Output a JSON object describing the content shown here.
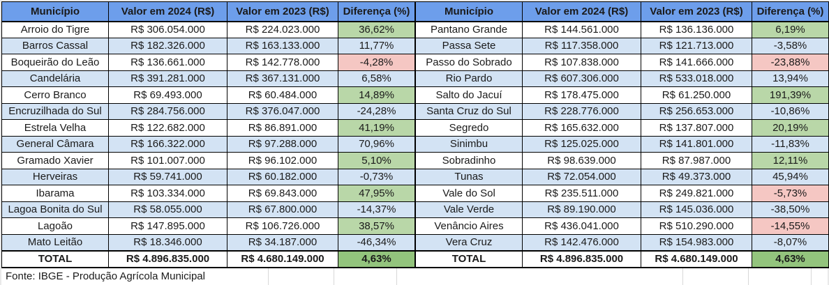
{
  "columns": [
    "Município",
    "Valor em 2024 (R$)",
    "Valor em 2023 (R$)",
    "Diferença (%)"
  ],
  "tables": [
    {
      "rows": [
        [
          "Arroio do Tigre",
          "R$ 306.054.000",
          "R$ 224.023.000",
          "36,62%"
        ],
        [
          "Barros Cassal",
          "R$ 182.326.000",
          "R$ 163.133.000",
          "11,77%"
        ],
        [
          "Boqueirão do Leão",
          "R$ 136.661.000",
          "R$ 142.778.000",
          "-4,28%"
        ],
        [
          "Candelária",
          "R$ 391.281.000",
          "R$ 367.131.000",
          "6,58%"
        ],
        [
          "Cerro Branco",
          "R$ 69.493.000",
          "R$ 60.484.000",
          "14,89%"
        ],
        [
          "Encruzilhada do Sul",
          "R$ 284.756.000",
          "R$ 376.047.000",
          "-24,28%"
        ],
        [
          "Estrela Velha",
          "R$ 122.682.000",
          "R$ 86.891.000",
          "41,19%"
        ],
        [
          "General Câmara",
          "R$ 166.322.000",
          "R$ 97.288.000",
          "70,96%"
        ],
        [
          "Gramado Xavier",
          "R$ 101.007.000",
          "R$ 96.102.000",
          "5,10%"
        ],
        [
          "Herveiras",
          "R$ 59.741.000",
          "R$ 60.182.000",
          "-0,73%"
        ],
        [
          "Ibarama",
          "R$ 103.334.000",
          "R$ 69.843.000",
          "47,95%"
        ],
        [
          "Lagoa Bonita do Sul",
          "R$ 58.055.000",
          "R$ 67.800.000",
          "-14,37%"
        ],
        [
          "Lagoão",
          "R$ 147.895.000",
          "R$ 106.726.000",
          "38,57%"
        ],
        [
          "Mato Leitão",
          "R$ 18.346.000",
          "R$ 34.187.000",
          "-46,34%"
        ]
      ],
      "total": [
        "TOTAL",
        "R$ 4.896.835.000",
        "R$ 4.680.149.000",
        "4,63%"
      ]
    },
    {
      "rows": [
        [
          "Pantano Grande",
          "R$ 144.561.000",
          "R$ 136.136.000",
          "6,19%"
        ],
        [
          "Passa Sete",
          "R$ 117.358.000",
          "R$ 121.713.000",
          "-3,58%"
        ],
        [
          "Passo do Sobrado",
          "R$ 107.838.000",
          "R$ 141.666.000",
          "-23,88%"
        ],
        [
          "Rio Pardo",
          "R$ 607.306.000",
          "R$ 533.018.000",
          "13,94%"
        ],
        [
          "Salto do Jacuí",
          "R$ 178.475.000",
          "R$ 61.250.000",
          "191,39%"
        ],
        [
          "Santa Cruz do Sul",
          "R$ 228.776.000",
          "R$ 256.653.000",
          "-10,86%"
        ],
        [
          "Segredo",
          "R$ 165.632.000",
          "R$ 137.807.000",
          "20,19%"
        ],
        [
          "Sinimbu",
          "R$ 125.025.000",
          "R$ 141.801.000",
          "-11,83%"
        ],
        [
          "Sobradinho",
          "R$ 98.639.000",
          "R$ 87.987.000",
          "12,11%"
        ],
        [
          "Tunas",
          "R$ 72.054.000",
          "R$ 49.373.000",
          "45,94%"
        ],
        [
          "Vale do Sol",
          "R$ 235.511.000",
          "R$ 249.821.000",
          "-5,73%"
        ],
        [
          "Vale Verde",
          "R$ 89.190.000",
          "R$ 145.036.000",
          "-38,50%"
        ],
        [
          "Venâncio Aires",
          "R$ 436.041.000",
          "R$ 510.290.000",
          "-14,55%"
        ],
        [
          "Vera Cruz",
          "R$ 142.476.000",
          "R$ 154.983.000",
          "-8,07%"
        ]
      ],
      "total": [
        "TOTAL",
        "R$ 4.896.835.000",
        "R$ 4.680.149.000",
        "4,63%"
      ]
    }
  ],
  "source_note": "Fonte: IBGE - Produção Agrícola Municipal",
  "colors": {
    "header_bg": "#6D9EEB",
    "row_stripe": "#D3E3F4",
    "positive_bg": "#B9D7A8",
    "negative_bg": "#F5C7C3",
    "total_positive_bg": "#93C47D",
    "border": "#000000",
    "faint_grid": "#D8D8D8",
    "canvas_bg": "#E9E9E9",
    "text": "#1A1A1A"
  },
  "chart_data": {
    "type": "table",
    "title": "Valor da produção agrícola por município (R$), 2024 vs 2023",
    "columns": [
      "Município",
      "Valor em 2024 (R$)",
      "Valor em 2023 (R$)",
      "Diferença (%)"
    ],
    "municipalities": [
      "Arroio do Tigre",
      "Barros Cassal",
      "Boqueirão do Leão",
      "Candelária",
      "Cerro Branco",
      "Encruzilhada do Sul",
      "Estrela Velha",
      "General Câmara",
      "Gramado Xavier",
      "Herveiras",
      "Ibarama",
      "Lagoa Bonita do Sul",
      "Lagoão",
      "Mato Leitão",
      "Pantano Grande",
      "Passa Sete",
      "Passo do Sobrado",
      "Rio Pardo",
      "Salto do Jacuí",
      "Santa Cruz do Sul",
      "Segredo",
      "Sinimbu",
      "Sobradinho",
      "Tunas",
      "Vale do Sol",
      "Vale Verde",
      "Venâncio Aires",
      "Vera Cruz"
    ],
    "series": [
      {
        "name": "Valor em 2024 (R$)",
        "values": [
          306054000,
          182326000,
          136661000,
          391281000,
          69493000,
          284756000,
          122682000,
          166322000,
          101007000,
          59741000,
          103334000,
          58055000,
          147895000,
          18346000,
          144561000,
          117358000,
          107838000,
          607306000,
          178475000,
          228776000,
          165632000,
          125025000,
          98639000,
          72054000,
          235511000,
          89190000,
          436041000,
          142476000
        ]
      },
      {
        "name": "Valor em 2023 (R$)",
        "values": [
          224023000,
          163133000,
          142778000,
          367131000,
          60484000,
          376047000,
          86891000,
          97288000,
          96102000,
          60182000,
          69843000,
          67800000,
          106726000,
          34187000,
          136136000,
          121713000,
          141666000,
          533018000,
          61250000,
          256653000,
          137807000,
          141801000,
          87987000,
          49373000,
          249821000,
          145036000,
          510290000,
          154983000
        ]
      },
      {
        "name": "Diferença (%)",
        "values": [
          36.62,
          11.77,
          -4.28,
          6.58,
          14.89,
          -24.28,
          41.19,
          70.96,
          5.1,
          -0.73,
          47.95,
          -14.37,
          38.57,
          -46.34,
          6.19,
          -3.58,
          -23.88,
          13.94,
          191.39,
          -10.86,
          20.19,
          -11.83,
          12.11,
          45.94,
          -5.73,
          -38.5,
          -14.55,
          -8.07
        ]
      }
    ],
    "total": {
      "valor_2024": 4896835000,
      "valor_2023": 4680149000,
      "diferenca_pct": 4.63
    },
    "source": "Fonte: IBGE - Produção Agrícola Municipal"
  }
}
